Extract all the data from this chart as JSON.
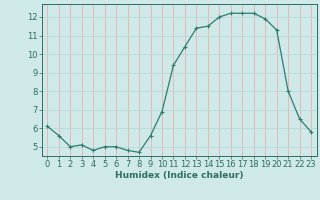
{
  "x": [
    0,
    1,
    2,
    3,
    4,
    5,
    6,
    7,
    8,
    9,
    10,
    11,
    12,
    13,
    14,
    15,
    16,
    17,
    18,
    19,
    20,
    21,
    22,
    23
  ],
  "y": [
    6.1,
    5.6,
    5.0,
    5.1,
    4.8,
    5.0,
    5.0,
    4.8,
    4.7,
    5.6,
    6.9,
    9.4,
    10.4,
    11.4,
    11.5,
    12.0,
    12.2,
    12.2,
    12.2,
    11.9,
    11.3,
    8.0,
    6.5,
    5.8
  ],
  "line_color": "#2e7d6e",
  "marker": "+",
  "marker_size": 3,
  "bg_color": "#cfe8e8",
  "grid_major_color": "#e8b0b0",
  "grid_minor_color": "#b8d8d8",
  "xlabel": "Humidex (Indice chaleur)",
  "ylim": [
    4.5,
    12.7
  ],
  "xlim": [
    -0.5,
    23.5
  ],
  "yticks": [
    5,
    6,
    7,
    8,
    9,
    10,
    11,
    12
  ],
  "xticks": [
    0,
    1,
    2,
    3,
    4,
    5,
    6,
    7,
    8,
    9,
    10,
    11,
    12,
    13,
    14,
    15,
    16,
    17,
    18,
    19,
    20,
    21,
    22,
    23
  ],
  "tick_color": "#2e6e60",
  "label_fontsize": 6.5,
  "tick_fontsize": 6.0
}
